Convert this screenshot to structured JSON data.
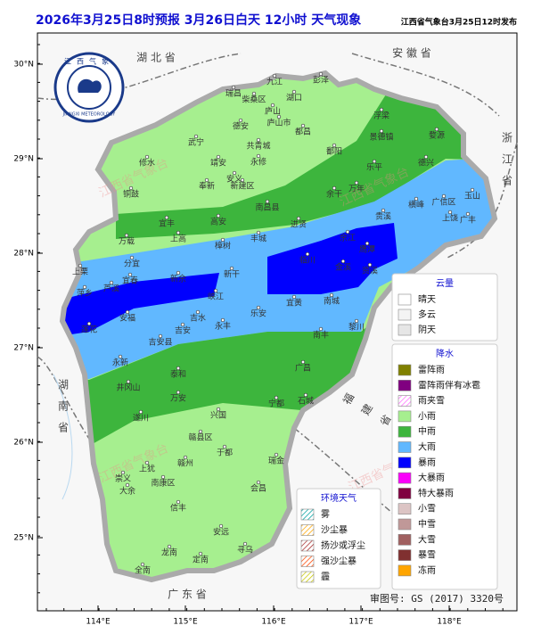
{
  "header": {
    "title": "2026年3月25日8时预报 3月26日白天 12小时  天气现象",
    "publisher": "江西省气象台3月25日12时发布"
  },
  "logo": {
    "name": "江西气象",
    "english": "JIANGXI METEOROLOGY"
  },
  "axes": {
    "lat_labels": [
      "30°N",
      "29°N",
      "28°N",
      "27°N",
      "26°N",
      "25°N"
    ],
    "lon_labels": [
      "114°E",
      "115°E",
      "116°E",
      "117°E",
      "118°E"
    ]
  },
  "regions": [
    "湖 北 省",
    "安 徽 省",
    "浙江省",
    "湖南省",
    "广 东 省",
    "福建省"
  ],
  "watermark": "江西省气象台",
  "cities": [
    "九江",
    "彭泽",
    "瑞昌",
    "柴桑区",
    "湖口",
    "庐山",
    "庐山市",
    "德安",
    "都昌",
    "浮梁",
    "景德镇",
    "武宁",
    "共青城",
    "鄱阳",
    "婺源",
    "修水",
    "永修",
    "靖安",
    "乐平",
    "德兴",
    "安义",
    "奉新",
    "新建区",
    "余干",
    "万年",
    "铜鼓",
    "玉山",
    "广信区",
    "南昌县",
    "横峰",
    "宜丰",
    "高安",
    "进贤",
    "贵溪",
    "上饶",
    "广丰",
    "上高",
    "丰城",
    "万载",
    "樟树",
    "余江",
    "鹰潭",
    "临川",
    "金溪",
    "资溪",
    "分宜",
    "宜春",
    "芦溪",
    "萍乡",
    "上栗",
    "新余",
    "新干",
    "宜黄",
    "南城",
    "峡江",
    "莲花",
    "安福",
    "吉水",
    "永丰",
    "乐安",
    "黎川",
    "吉安",
    "南丰",
    "吉安县",
    "永新",
    "泰和",
    "井冈山",
    "万安",
    "广昌",
    "宁都",
    "石城",
    "兴国",
    "遂川",
    "赣县区",
    "于都",
    "瑞金",
    "赣州",
    "上犹",
    "崇义",
    "南康区",
    "大余",
    "会昌",
    "信丰",
    "安远",
    "龙南",
    "寻乌",
    "定南",
    "全南"
  ],
  "legend": {
    "cloud": {
      "title": "云量",
      "items": [
        {
          "label": "晴天",
          "color": "#ffffff"
        },
        {
          "label": "多云",
          "color": "#f4f4f4"
        },
        {
          "label": "阴天",
          "color": "#e6e6e6"
        }
      ]
    },
    "precipitation": {
      "title": "降水",
      "items": [
        {
          "label": "雷阵雨",
          "color": "#808000"
        },
        {
          "label": "雷阵雨伴有冰雹",
          "color": "#800080"
        },
        {
          "label": "雨夹雪",
          "color": "#ff70ff",
          "hatch": true
        },
        {
          "label": "小雨",
          "color": "#a6ef8f"
        },
        {
          "label": "中雨",
          "color": "#3db53d"
        },
        {
          "label": "大雨",
          "color": "#61b8ff"
        },
        {
          "label": "暴雨",
          "color": "#0000fe"
        },
        {
          "label": "大暴雨",
          "color": "#fa00fa"
        },
        {
          "label": "特大暴雨",
          "color": "#800040"
        },
        {
          "label": "小雪",
          "color": "#dcc4c4"
        },
        {
          "label": "中雪",
          "color": "#c09898"
        },
        {
          "label": "大雪",
          "color": "#a06060"
        },
        {
          "label": "暴雪",
          "color": "#803030"
        },
        {
          "label": "冻雨",
          "color": "#ffa500"
        }
      ]
    },
    "environment": {
      "title": "环境天气",
      "items": [
        {
          "label": "雾",
          "color": "#00a0a0",
          "hatch": true
        },
        {
          "label": "沙尘暴",
          "color": "#ffa500",
          "hatch": true
        },
        {
          "label": "扬沙或浮尘",
          "color": "#a52a2a",
          "hatch": true
        },
        {
          "label": "强沙尘暴",
          "color": "#ff4500",
          "hatch": true
        },
        {
          "label": "霾",
          "color": "#c8c800",
          "hatch": true
        }
      ]
    }
  },
  "approval": "审图号: GS (2017) 3320号"
}
